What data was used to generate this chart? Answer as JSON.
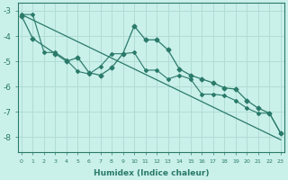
{
  "xlabel": "Humidex (Indice chaleur)",
  "bg_color": "#caf0ea",
  "grid_color": "#b0ddd5",
  "line_color": "#2a7a6a",
  "x_ticks": [
    0,
    1,
    2,
    3,
    4,
    5,
    6,
    7,
    8,
    9,
    10,
    11,
    12,
    13,
    14,
    15,
    16,
    17,
    18,
    19,
    20,
    21,
    22,
    23
  ],
  "y_ticks": [
    -3,
    -4,
    -5,
    -6,
    -7,
    -8
  ],
  "ylim": [
    -8.6,
    -2.7
  ],
  "xlim": [
    -0.3,
    23.3
  ],
  "line1_x": [
    0,
    1,
    3,
    4,
    5,
    6,
    7,
    8,
    9,
    10,
    11,
    12,
    13,
    14,
    15,
    16,
    17,
    18,
    19,
    20,
    21,
    22,
    23
  ],
  "line1_y": [
    -3.2,
    -4.1,
    -4.7,
    -5.0,
    -4.85,
    -5.45,
    -5.55,
    -5.25,
    -4.7,
    -3.6,
    -4.15,
    -4.15,
    -4.55,
    -5.3,
    -5.55,
    -5.7,
    -5.85,
    -6.05,
    -6.1,
    -6.55,
    -6.85,
    -7.05,
    -7.85
  ],
  "line2_x": [
    0,
    1,
    2,
    3,
    4,
    5,
    6,
    7,
    8,
    9,
    10,
    11,
    12,
    13,
    14,
    15,
    16,
    17,
    18,
    19,
    20,
    21,
    22,
    23
  ],
  "line2_y": [
    -3.15,
    -3.15,
    -4.65,
    -4.65,
    -4.95,
    -5.4,
    -5.5,
    -5.2,
    -4.7,
    -4.7,
    -4.65,
    -5.35,
    -5.35,
    -5.7,
    -5.55,
    -5.7,
    -6.3,
    -6.3,
    -6.35,
    -6.55,
    -6.85,
    -7.05,
    -7.05,
    -7.85
  ],
  "line3_x": [
    0,
    23
  ],
  "line3_y": [
    -3.15,
    -8.1
  ]
}
